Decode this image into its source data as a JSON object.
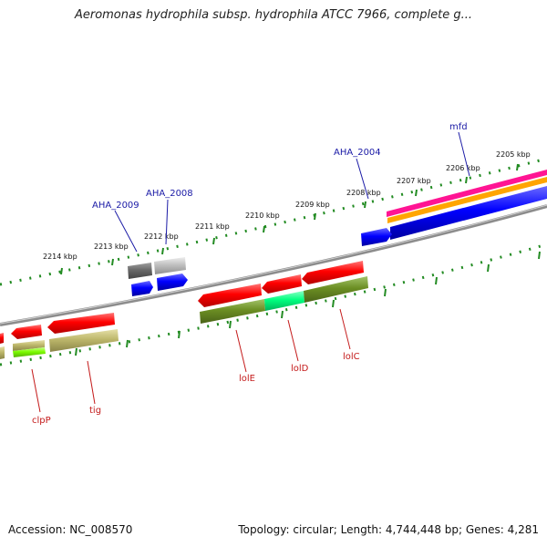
{
  "title": "Aeromonas hydrophila subsp. hydrophila ATCC 7966, complete g...",
  "accession": "Accession: NC_008570",
  "topology": "Topology: circular; Length: 4,744,448 bp; Genes: 4,281",
  "scale": {
    "tick_labels": [
      "2214 kbp",
      "2213 kbp",
      "2212 kbp",
      "2211 kbp",
      "2210 kbp",
      "2209 kbp",
      "2208 kbp",
      "2207 kbp",
      "2206 kbp",
      "2205 kbp"
    ]
  },
  "genes_top": [
    "AHA_2009",
    "AHA_2008",
    "AHA_2004",
    "mfd"
  ],
  "genes_bottom": [
    "clpP",
    "tig",
    "lolE",
    "lolD",
    "lolC"
  ],
  "colors": {
    "cds_red": "#ff0000",
    "cds_blue": "#0000ff",
    "olive": "#6b8e23",
    "khaki": "#bdb76b",
    "aquamarine": "#00ff7f",
    "lime": "#7cfc00",
    "magenta": "#ff1493",
    "orange": "#ffa500",
    "grey_dark": "#696969",
    "grey_light": "#c0c0c0",
    "backbone": "#8c8c8c",
    "tick_green": "#228b22",
    "label_blue": "#1a1aa6",
    "label_red": "#c41a1a"
  }
}
